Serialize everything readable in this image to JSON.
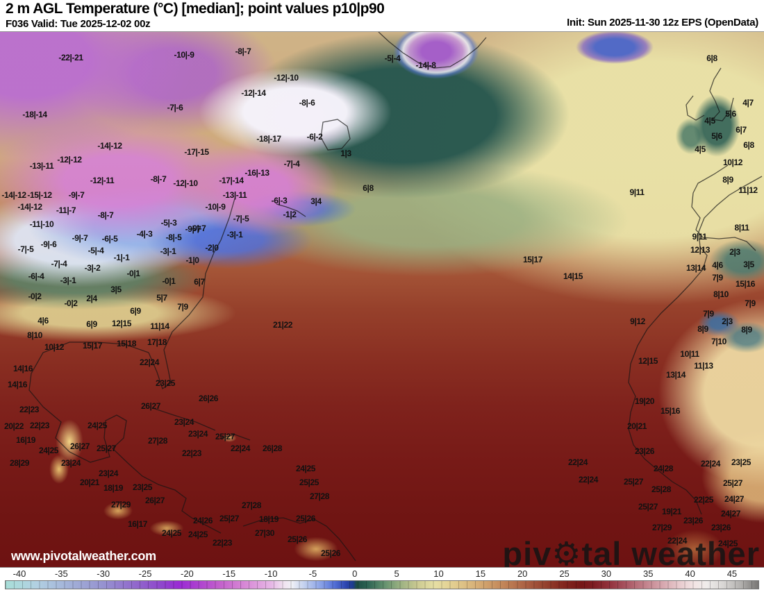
{
  "header": {
    "title": "2 m AGL Temperature (°C) [median]; point values p10|p90",
    "left_sub": "F036 Valid: Tue 2025-12-02 00z",
    "right_sub": "Init: Sun 2025-11-30 12z EPS (OpenData)"
  },
  "watermarks": {
    "url": "www.pivotalweather.com",
    "brand_prefix": "piv",
    "gear_glyph": "⚙",
    "brand_suffix": "tal weather"
  },
  "colorbar": {
    "unit": "°C",
    "ticks": [
      -40,
      -35,
      -30,
      -25,
      -20,
      -15,
      -10,
      -5,
      0,
      5,
      10,
      15,
      20,
      25,
      30,
      35,
      40,
      45
    ],
    "stops": [
      {
        "v": -41.7,
        "c": "#a8ded8"
      },
      {
        "v": -38,
        "c": "#b2d0e2"
      },
      {
        "v": -34,
        "c": "#a2b0d8"
      },
      {
        "v": -30,
        "c": "#9692d0"
      },
      {
        "v": -26,
        "c": "#9166cc"
      },
      {
        "v": -23,
        "c": "#8f46cc"
      },
      {
        "v": -21,
        "c": "#9a2ad4"
      },
      {
        "v": -19,
        "c": "#aa3ed0"
      },
      {
        "v": -16,
        "c": "#c462cc"
      },
      {
        "v": -13,
        "c": "#d88ad6"
      },
      {
        "v": -10,
        "c": "#e6b6e6"
      },
      {
        "v": -8.5,
        "c": "#f0e2f0"
      },
      {
        "v": -7.5,
        "c": "#eff0f6"
      },
      {
        "v": -6,
        "c": "#c2d0ee"
      },
      {
        "v": -4,
        "c": "#88a0e6"
      },
      {
        "v": -2.5,
        "c": "#5672d8"
      },
      {
        "v": -1,
        "c": "#2c44ae"
      },
      {
        "v": -0.2,
        "c": "#1e3c8c"
      },
      {
        "v": 0.2,
        "c": "#1e4c44"
      },
      {
        "v": 1.5,
        "c": "#2c6252"
      },
      {
        "v": 3.5,
        "c": "#62906e"
      },
      {
        "v": 5.5,
        "c": "#9cb282"
      },
      {
        "v": 7.5,
        "c": "#ccca92"
      },
      {
        "v": 9.5,
        "c": "#e6dfa4"
      },
      {
        "v": 12,
        "c": "#e2cc8e"
      },
      {
        "v": 15,
        "c": "#d4a972"
      },
      {
        "v": 18,
        "c": "#c08256"
      },
      {
        "v": 20.5,
        "c": "#aa5f42"
      },
      {
        "v": 23,
        "c": "#923e2c"
      },
      {
        "v": 25,
        "c": "#82251e"
      },
      {
        "v": 27,
        "c": "#751717"
      },
      {
        "v": 28.5,
        "c": "#7e1d22"
      },
      {
        "v": 30.5,
        "c": "#93333e"
      },
      {
        "v": 32.5,
        "c": "#aa5763"
      },
      {
        "v": 34.5,
        "c": "#c07e88"
      },
      {
        "v": 36.5,
        "c": "#d4a2aa"
      },
      {
        "v": 38.5,
        "c": "#e6c6ca"
      },
      {
        "v": 40.5,
        "c": "#f2e4e4"
      },
      {
        "v": 42,
        "c": "#efeceb"
      },
      {
        "v": 44,
        "c": "#d8d6d4"
      },
      {
        "v": 46,
        "c": "#b4b2b0"
      },
      {
        "v": 48.2,
        "c": "#787674"
      }
    ]
  },
  "map": {
    "point_values": [
      [
        102,
        82,
        "-22|-21"
      ],
      [
        265,
        78,
        "-10|-9"
      ],
      [
        350,
        73,
        "-8|-7"
      ],
      [
        50,
        164,
        "-18|-14"
      ],
      [
        252,
        154,
        "-7|-6"
      ],
      [
        365,
        133,
        "-12|-14"
      ],
      [
        158,
        209,
        "-14|-12"
      ],
      [
        283,
        218,
        "-17|-15"
      ],
      [
        100,
        229,
        "-12|-12"
      ],
      [
        60,
        238,
        "-13|-11"
      ],
      [
        147,
        259,
        "-12|-11"
      ],
      [
        228,
        257,
        "-8|-7"
      ],
      [
        267,
        263,
        "-12|-10"
      ],
      [
        333,
        259,
        "-17|-14"
      ],
      [
        370,
        248,
        "-16|-13"
      ],
      [
        20,
        280,
        "-14|-12"
      ],
      [
        57,
        280,
        "-15|-12"
      ],
      [
        110,
        280,
        "-9|-7"
      ],
      [
        338,
        280,
        "-13|-11"
      ],
      [
        43,
        297,
        "-14|-12"
      ],
      [
        412,
        111,
        "-12|-10"
      ],
      [
        442,
        147,
        "-8|-6"
      ],
      [
        387,
        199,
        "-18|-17"
      ],
      [
        453,
        196,
        "-6|-2"
      ],
      [
        498,
        220,
        "1|3"
      ],
      [
        420,
        235,
        "-7|-4"
      ],
      [
        565,
        83,
        "-5|-4"
      ],
      [
        613,
        93,
        "-14|-8"
      ],
      [
        530,
        270,
        "6|8"
      ],
      [
        455,
        289,
        "3|4"
      ],
      [
        402,
        288,
        "-6|-3"
      ],
      [
        417,
        308,
        "-1|2"
      ],
      [
        310,
        297,
        "-10|-9"
      ],
      [
        347,
        314,
        "-7|-5"
      ],
      [
        285,
        328,
        "-9|-7"
      ],
      [
        338,
        337,
        "-3|-1"
      ],
      [
        305,
        356,
        "-2|0"
      ],
      [
        277,
        374,
        "-1|0"
      ],
      [
        287,
        405,
        "6|7"
      ],
      [
        95,
        302,
        "-11|-7"
      ],
      [
        152,
        309,
        "-8|-7"
      ],
      [
        243,
        320,
        "-5|-3"
      ],
      [
        60,
        322,
        "-11|-10"
      ],
      [
        278,
        329,
        "-9|-7"
      ],
      [
        208,
        336,
        "-4|-3"
      ],
      [
        115,
        342,
        "-9|-7"
      ],
      [
        158,
        343,
        "-6|-5"
      ],
      [
        250,
        341,
        "-8|-5"
      ],
      [
        70,
        351,
        "-9|-6"
      ],
      [
        37,
        358,
        "-7|-5"
      ],
      [
        138,
        360,
        "-5|-4"
      ],
      [
        242,
        361,
        "-3|-1"
      ],
      [
        175,
        370,
        "-1|-1"
      ],
      [
        85,
        379,
        "-7|-4"
      ],
      [
        133,
        385,
        "-3|-2"
      ],
      [
        192,
        393,
        "-0|1"
      ],
      [
        52,
        397,
        "-6|-4"
      ],
      [
        98,
        403,
        "-3|-1"
      ],
      [
        243,
        404,
        "-0|1"
      ],
      [
        167,
        416,
        "3|5"
      ],
      [
        50,
        426,
        "-0|2"
      ],
      [
        132,
        429,
        "2|4"
      ],
      [
        233,
        428,
        "5|7"
      ],
      [
        102,
        436,
        "-0|2"
      ],
      [
        263,
        441,
        "7|9"
      ],
      [
        195,
        447,
        "6|9"
      ],
      [
        62,
        461,
        "4|6"
      ],
      [
        132,
        466,
        "6|9"
      ],
      [
        175,
        465,
        "12|15"
      ],
      [
        230,
        469,
        "11|14"
      ],
      [
        50,
        482,
        "8|10"
      ],
      [
        78,
        499,
        "10|12"
      ],
      [
        133,
        497,
        "15|17"
      ],
      [
        182,
        494,
        "15|18"
      ],
      [
        226,
        492,
        "17|18"
      ],
      [
        215,
        521,
        "22|24"
      ],
      [
        33,
        530,
        "14|16"
      ],
      [
        407,
        467,
        "21|22"
      ],
      [
        767,
        373,
        "15|17"
      ],
      [
        825,
        397,
        "14|15"
      ],
      [
        917,
        276,
        "9|11"
      ],
      [
        918,
        462,
        "9|12"
      ],
      [
        1025,
        83,
        "6|8"
      ],
      [
        1077,
        147,
        "4|7"
      ],
      [
        1052,
        163,
        "5|6"
      ],
      [
        1022,
        173,
        "4|5"
      ],
      [
        1067,
        186,
        "6|7"
      ],
      [
        1032,
        195,
        "5|6"
      ],
      [
        1078,
        208,
        "6|8"
      ],
      [
        1008,
        214,
        "4|5"
      ],
      [
        1055,
        233,
        "10|12"
      ],
      [
        1048,
        258,
        "8|9"
      ],
      [
        1077,
        273,
        "11|12"
      ],
      [
        1068,
        327,
        "8|11"
      ],
      [
        1007,
        340,
        "9|11"
      ],
      [
        1008,
        359,
        "12|13"
      ],
      [
        1058,
        362,
        "2|3"
      ],
      [
        1002,
        385,
        "13|14"
      ],
      [
        1033,
        381,
        "4|6"
      ],
      [
        1078,
        380,
        "3|5"
      ],
      [
        1033,
        399,
        "7|9"
      ],
      [
        1073,
        408,
        "15|16"
      ],
      [
        1038,
        423,
        "8|10"
      ],
      [
        1080,
        436,
        "7|9"
      ],
      [
        1020,
        451,
        "7|9"
      ],
      [
        1047,
        462,
        "2|3"
      ],
      [
        1012,
        473,
        "8|9"
      ],
      [
        1075,
        474,
        "8|9"
      ],
      [
        1035,
        491,
        "7|10"
      ],
      [
        993,
        509,
        "10|11"
      ],
      [
        933,
        519,
        "12|15"
      ],
      [
        1013,
        526,
        "11|13"
      ],
      [
        973,
        539,
        "13|14"
      ],
      [
        928,
        577,
        "19|20"
      ],
      [
        965,
        591,
        "15|16"
      ],
      [
        917,
        613,
        "20|21"
      ],
      [
        928,
        649,
        "23|26"
      ],
      [
        832,
        665,
        "22|24"
      ],
      [
        1023,
        667,
        "22|24"
      ],
      [
        1067,
        665,
        "23|25"
      ],
      [
        955,
        674,
        "24|28"
      ],
      [
        847,
        690,
        "22|24"
      ],
      [
        912,
        693,
        "25|27"
      ],
      [
        1055,
        695,
        "25|27"
      ],
      [
        952,
        704,
        "25|28"
      ],
      [
        1013,
        719,
        "22|25"
      ],
      [
        1057,
        718,
        "24|27"
      ],
      [
        933,
        729,
        "25|27"
      ],
      [
        967,
        736,
        "19|21"
      ],
      [
        1052,
        739,
        "24|27"
      ],
      [
        998,
        749,
        "23|26"
      ],
      [
        1038,
        759,
        "23|26"
      ],
      [
        953,
        759,
        "27|29"
      ],
      [
        975,
        778,
        "22|24"
      ],
      [
        1048,
        782,
        "24|25"
      ],
      [
        25,
        553,
        "14|16"
      ],
      [
        42,
        589,
        "22|23"
      ],
      [
        20,
        613,
        "20|22"
      ],
      [
        57,
        612,
        "22|23"
      ],
      [
        37,
        633,
        "16|19"
      ],
      [
        70,
        648,
        "24|25"
      ],
      [
        28,
        666,
        "28|29"
      ],
      [
        102,
        666,
        "23|24"
      ],
      [
        115,
        642,
        "26|27"
      ],
      [
        140,
        612,
        "24|25"
      ],
      [
        153,
        645,
        "25|27"
      ],
      [
        238,
        551,
        "23|25"
      ],
      [
        300,
        573,
        "26|26"
      ],
      [
        217,
        584,
        "26|27"
      ],
      [
        265,
        607,
        "23|24"
      ],
      [
        285,
        624,
        "23|24"
      ],
      [
        324,
        628,
        "25|27"
      ],
      [
        346,
        645,
        "22|24"
      ],
      [
        227,
        634,
        "27|28"
      ],
      [
        276,
        652,
        "22|23"
      ],
      [
        156,
        681,
        "23|24"
      ],
      [
        129,
        694,
        "20|21"
      ],
      [
        163,
        702,
        "18|19"
      ],
      [
        205,
        701,
        "23|25"
      ],
      [
        223,
        720,
        "26|27"
      ],
      [
        174,
        726,
        "27|29"
      ],
      [
        198,
        754,
        "16|17"
      ],
      [
        247,
        767,
        "24|25"
      ],
      [
        292,
        749,
        "24|26"
      ],
      [
        330,
        746,
        "25|27"
      ],
      [
        285,
        769,
        "24|25"
      ],
      [
        320,
        781,
        "22|23"
      ],
      [
        362,
        727,
        "27|28"
      ],
      [
        392,
        645,
        "26|28"
      ],
      [
        440,
        674,
        "24|25"
      ],
      [
        445,
        694,
        "25|25"
      ],
      [
        460,
        714,
        "27|28"
      ],
      [
        440,
        746,
        "25|26"
      ],
      [
        387,
        747,
        "18|19"
      ],
      [
        381,
        767,
        "27|30"
      ],
      [
        428,
        776,
        "25|26"
      ],
      [
        476,
        796,
        "25|26"
      ]
    ]
  }
}
